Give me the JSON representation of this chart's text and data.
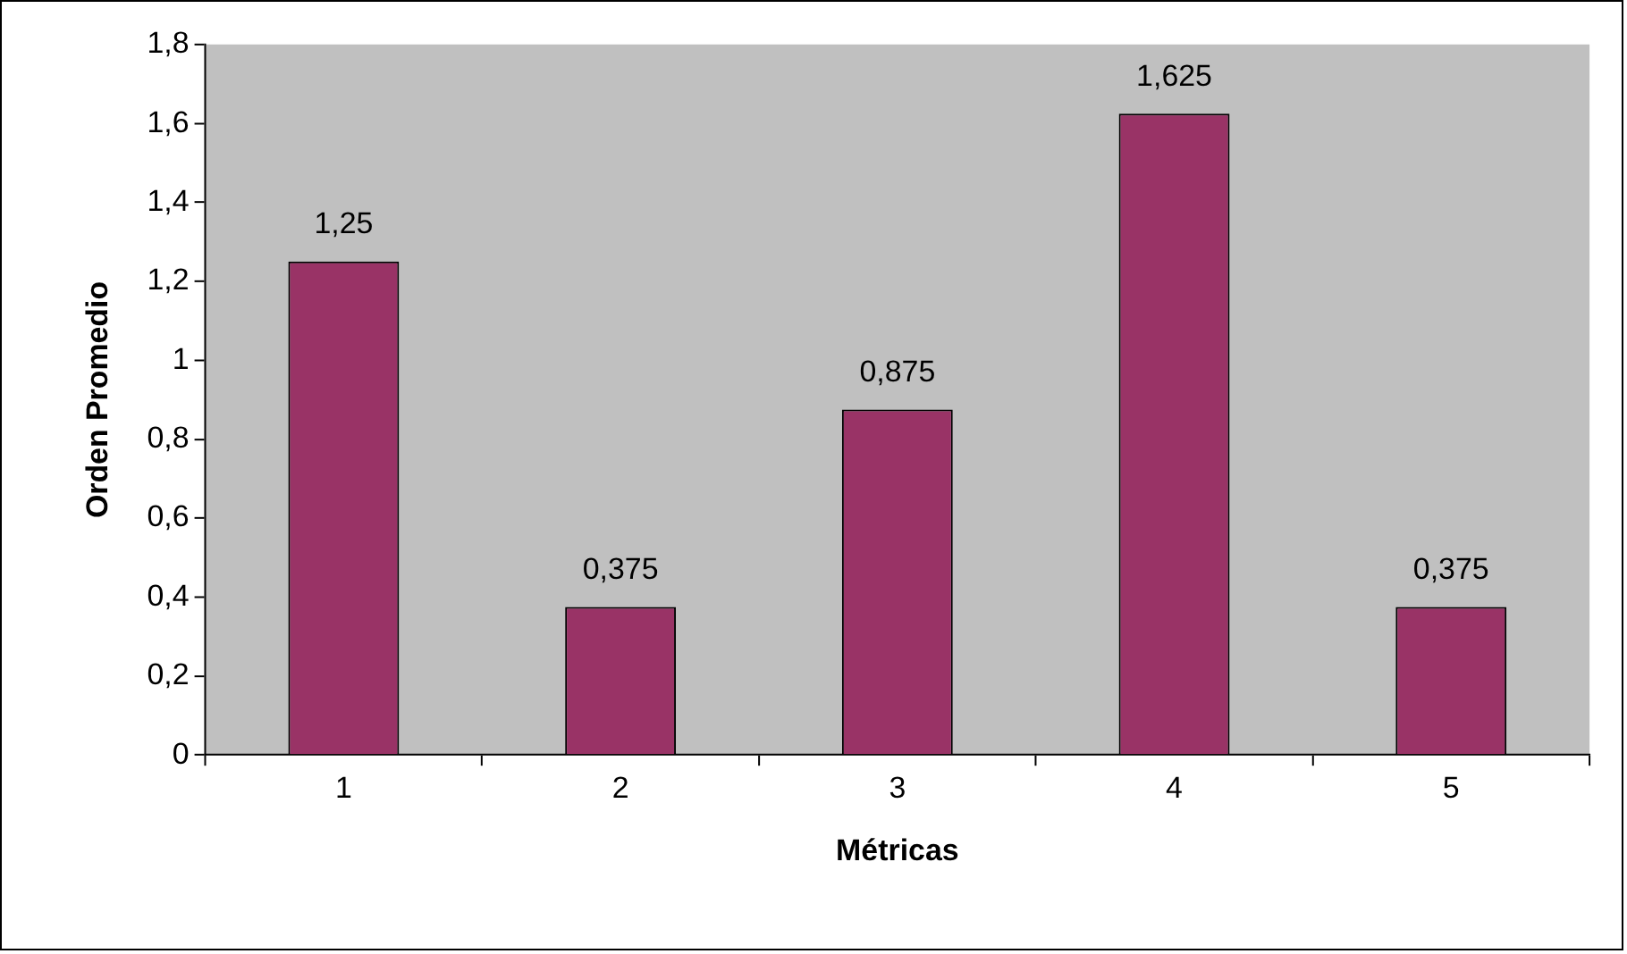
{
  "chart_data": {
    "type": "bar",
    "xlabel": "Métricas",
    "ylabel": "Orden Promedio",
    "categories": [
      "1",
      "2",
      "3",
      "4",
      "5"
    ],
    "values": [
      1.25,
      0.375,
      0.875,
      1.625,
      0.375
    ],
    "value_labels": [
      "1,25",
      "0,375",
      "0,875",
      "1,625",
      "0,375"
    ],
    "color": "#993366",
    "ylim": [
      0,
      1.8
    ],
    "yticks": [
      0,
      {
        "value": 0.2,
        "label": "0,2"
      },
      {
        "value": 0.4,
        "label": "0,4"
      },
      {
        "value": 0.6,
        "label": "0,6"
      },
      {
        "value": 0.8,
        "label": "0,8"
      },
      1,
      {
        "value": 1.2,
        "label": "1,2"
      },
      {
        "value": 1.4,
        "label": "1,4"
      },
      {
        "value": 1.6,
        "label": "1,6"
      },
      {
        "value": 1.8,
        "label": "1,8"
      }
    ]
  }
}
